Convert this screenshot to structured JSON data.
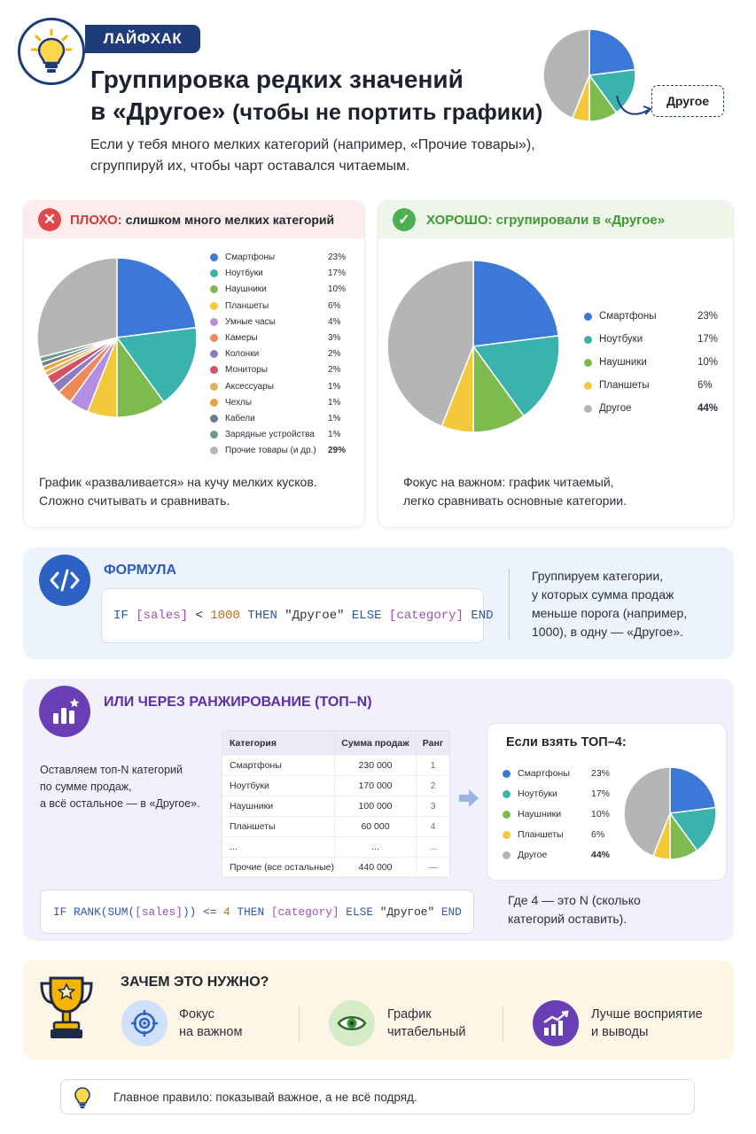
{
  "header": {
    "tag": "ЛАЙФХАК",
    "title_line1": "Группировка редких значений",
    "title_line2_main": "в «Другое»",
    "title_line2_rest": "(чтобы не портить графики)",
    "intro_line1": "Если у тебя много мелких категорий (например, «Прочие товары»),",
    "intro_line2": "сгруппируй их, чтобы чарт оставался читаемым.",
    "callout_label": "Другое"
  },
  "bad": {
    "title_strong": "ПЛОХО:",
    "title_rest": "слишком много мелких категорий",
    "note_line1": "График «разваливается» на кучу мелких кусков.",
    "note_line2": "Сложно считывать и сравнивать.",
    "legend": [
      {
        "label": "Смартфоны",
        "pct": "23%",
        "color": "#3c78d8"
      },
      {
        "label": "Ноутбуки",
        "pct": "17%",
        "color": "#3bb3ad"
      },
      {
        "label": "Наушники",
        "pct": "10%",
        "color": "#7dbb4f"
      },
      {
        "label": "Планшеты",
        "pct": "6%",
        "color": "#f2c93a"
      },
      {
        "label": "Умные часы",
        "pct": "4%",
        "color": "#b48ee0"
      },
      {
        "label": "Камеры",
        "pct": "3%",
        "color": "#ee8a5a"
      },
      {
        "label": "Колонки",
        "pct": "2%",
        "color": "#8e7cc3"
      },
      {
        "label": "Мониторы",
        "pct": "2%",
        "color": "#d64f62"
      },
      {
        "label": "Аксессуары",
        "pct": "1%",
        "color": "#e3b257"
      },
      {
        "label": "Чехлы",
        "pct": "1%",
        "color": "#f0a03a"
      },
      {
        "label": "Кабели",
        "pct": "1%",
        "color": "#6b7d93"
      },
      {
        "label": "Зарядные устройства",
        "pct": "1%",
        "color": "#6f9a8e"
      },
      {
        "label": "Прочие товары (и др.)",
        "pct": "29%",
        "color": "#b5b5b5"
      }
    ]
  },
  "good": {
    "title_strong": "ХОРОШО:",
    "title_rest": "сгрупировали в «Другое»",
    "note_line1": "Фокус на важном: график читаемый,",
    "note_line2": "легко сравнивать основные категории.",
    "legend": [
      {
        "label": "Смартфоны",
        "pct": "23%",
        "color": "#3c78d8"
      },
      {
        "label": "Ноутбуки",
        "pct": "17%",
        "color": "#3bb3ad"
      },
      {
        "label": "Наушники",
        "pct": "10%",
        "color": "#7dbb4f"
      },
      {
        "label": "Планшеты",
        "pct": "6%",
        "color": "#f2c93a"
      },
      {
        "label": "Другое",
        "pct": "44%",
        "color": "#b5b5b5"
      }
    ]
  },
  "formula": {
    "title": "ФОРМУЛА",
    "code": {
      "if": "IF",
      "field1": "[sales]",
      "op": "<",
      "num": "1000",
      "then": "THEN",
      "str": "\"Другое\"",
      "else": "ELSE",
      "field2": "[category]",
      "end": "END"
    },
    "note_line1": "Группируем категории,",
    "note_line2": "у которых сумма продаж",
    "note_line3": "меньше порога (например,",
    "note_line4": "1000), в одну — «Другое»."
  },
  "rank": {
    "title": "ИЛИ ЧЕРЕЗ РАНЖИРОВАНИЕ (ТОП–N)",
    "desc_line1": "Оставляем топ-N категорий",
    "desc_line2": "по сумме продаж,",
    "desc_line3": "а всё остальное — в «Другое».",
    "table": {
      "headers": [
        "Категория",
        "Сумма продаж",
        "Ранг"
      ],
      "rows": [
        [
          "Смартфоны",
          "230 000",
          "1"
        ],
        [
          "Ноутбуки",
          "170 000",
          "2"
        ],
        [
          "Наушники",
          "100 000",
          "3"
        ],
        [
          "Планшеты",
          "60 000",
          "4"
        ],
        [
          "...",
          "...",
          "..."
        ],
        [
          "Прочие (все остальные)",
          "440 000",
          "—"
        ]
      ]
    },
    "code": {
      "if": "IF",
      "rank": "RANK(SUM(",
      "field1": "[sales]",
      "close": ")) <=",
      "num": "4",
      "then": "THEN",
      "field2": "[category]",
      "else": "ELSE",
      "str": "\"Другое\"",
      "end": "END"
    },
    "top_title": "Если взять ТОП–4:",
    "top_legend": [
      {
        "label": "Смартфоны",
        "pct": "23%",
        "color": "#3c78d8"
      },
      {
        "label": "Ноутбуки",
        "pct": "17%",
        "color": "#3bb3ad"
      },
      {
        "label": "Наушники",
        "pct": "10%",
        "color": "#7dbb4f"
      },
      {
        "label": "Планшеты",
        "pct": "6%",
        "color": "#f2c93a"
      },
      {
        "label": "Другое",
        "pct": "44%",
        "color": "#b5b5b5"
      }
    ],
    "n_note_line1": "Где 4 — это N (сколько",
    "n_note_line2": "категорий оставить)."
  },
  "why": {
    "title": "ЗАЧЕМ ЭТО НУЖНО?",
    "items": [
      {
        "line1": "Фокус",
        "line2": "на важном",
        "icon": "target-icon"
      },
      {
        "line1": "График",
        "line2": "читабельный",
        "icon": "eye-icon"
      },
      {
        "line1": "Лучше восприятие",
        "line2": "и выводы",
        "icon": "growth-chart-icon"
      }
    ]
  },
  "footer": {
    "rule": "Главное правило: показывай важное, а не всё подряд."
  },
  "chart_data": [
    {
      "type": "pie",
      "title": "",
      "categories": [
        "Смартфоны",
        "Ноутбуки",
        "Наушники",
        "Планшеты",
        "Умные часы",
        "Камеры",
        "Колонки",
        "Мониторы",
        "Аксессуары",
        "Чехлы",
        "Кабели",
        "Зарядные устройства",
        "Прочие товары (и др.)"
      ],
      "values": [
        23,
        17,
        10,
        6,
        4,
        3,
        2,
        2,
        1,
        1,
        1,
        1,
        29
      ]
    },
    {
      "type": "pie",
      "title": "",
      "categories": [
        "Смартфоны",
        "Ноутбуки",
        "Наушники",
        "Планшеты",
        "Другое"
      ],
      "values": [
        23,
        17,
        10,
        6,
        44
      ]
    },
    {
      "type": "pie",
      "title": "Если взять ТОП–4:",
      "categories": [
        "Смартфоны",
        "Ноутбуки",
        "Наушники",
        "Планшеты",
        "Другое"
      ],
      "values": [
        23,
        17,
        10,
        6,
        44
      ]
    },
    {
      "type": "table",
      "columns": [
        "Категория",
        "Сумма продаж",
        "Ранг"
      ],
      "rows": [
        [
          "Смартфоны",
          230000,
          1
        ],
        [
          "Ноутбуки",
          170000,
          2
        ],
        [
          "Наушники",
          100000,
          3
        ],
        [
          "Планшеты",
          60000,
          4
        ],
        [
          "...",
          "...",
          "..."
        ],
        [
          "Прочие (все остальные)",
          440000,
          "—"
        ]
      ]
    }
  ]
}
